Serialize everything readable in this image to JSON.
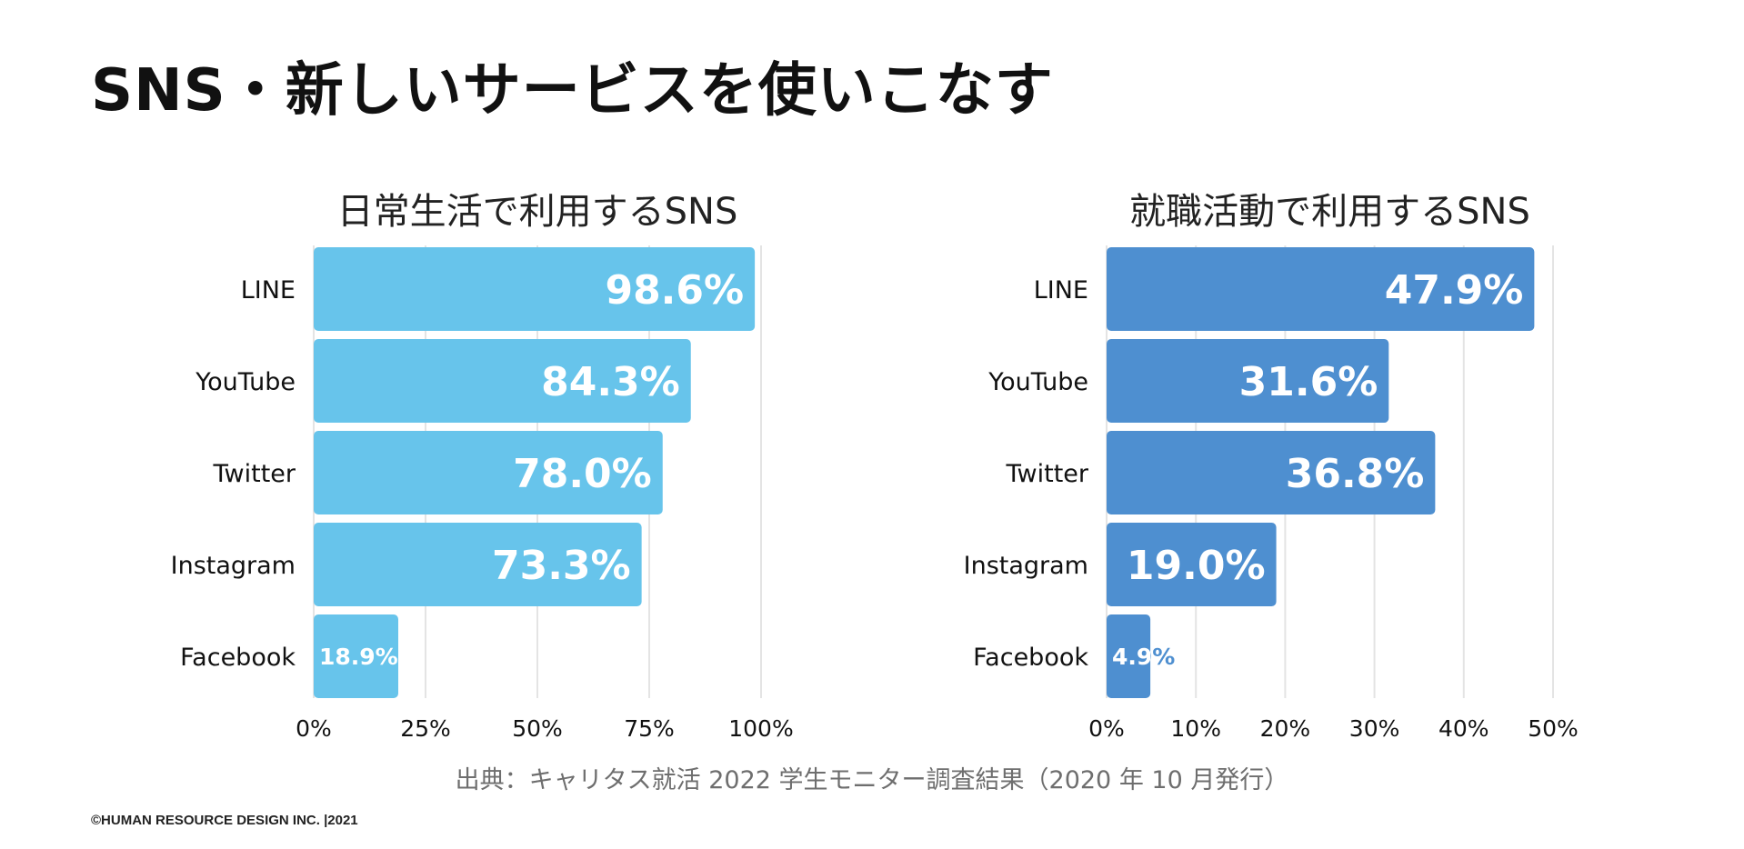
{
  "page": {
    "title": "SNS・新しいサービスを使いこなす",
    "source": "出典：キャリタス就活 2022 学生モニター調査結果（2020 年 10 月発行）",
    "copyright": "©HUMAN RESOURCE DESIGN INC. |2021"
  },
  "colors": {
    "left_bar": "#67c4eb",
    "right_bar": "#4e8fd0",
    "grid": "#e4e4e4",
    "text": "#111111"
  },
  "chart_data": [
    {
      "type": "bar",
      "orientation": "horizontal",
      "title": "日常生活で利用するSNS",
      "categories": [
        "LINE",
        "YouTube",
        "Twitter",
        "Instagram",
        "Facebook"
      ],
      "values": [
        98.6,
        84.3,
        78.0,
        73.3,
        18.9
      ],
      "value_labels": [
        "98.6%",
        "84.3%",
        "78.0%",
        "73.3%",
        "18.9%"
      ],
      "xlim": [
        0,
        100
      ],
      "ticks": [
        0,
        25,
        50,
        75,
        100
      ],
      "tick_labels": [
        "0%",
        "25%",
        "50%",
        "75%",
        "100%"
      ],
      "grid": true,
      "xlabel": "",
      "ylabel": ""
    },
    {
      "type": "bar",
      "orientation": "horizontal",
      "title": "就職活動で利用するSNS",
      "categories": [
        "LINE",
        "YouTube",
        "Twitter",
        "Instagram",
        "Facebook"
      ],
      "values": [
        47.9,
        31.6,
        36.8,
        19.0,
        4.9
      ],
      "value_labels": [
        "47.9%",
        "31.6%",
        "36.8%",
        "19.0%",
        "4.9%"
      ],
      "xlim": [
        0,
        50
      ],
      "ticks": [
        0,
        10,
        20,
        30,
        40,
        50
      ],
      "tick_labels": [
        "0%",
        "10%",
        "20%",
        "30%",
        "40%",
        "50%"
      ],
      "grid": true,
      "xlabel": "",
      "ylabel": ""
    }
  ]
}
